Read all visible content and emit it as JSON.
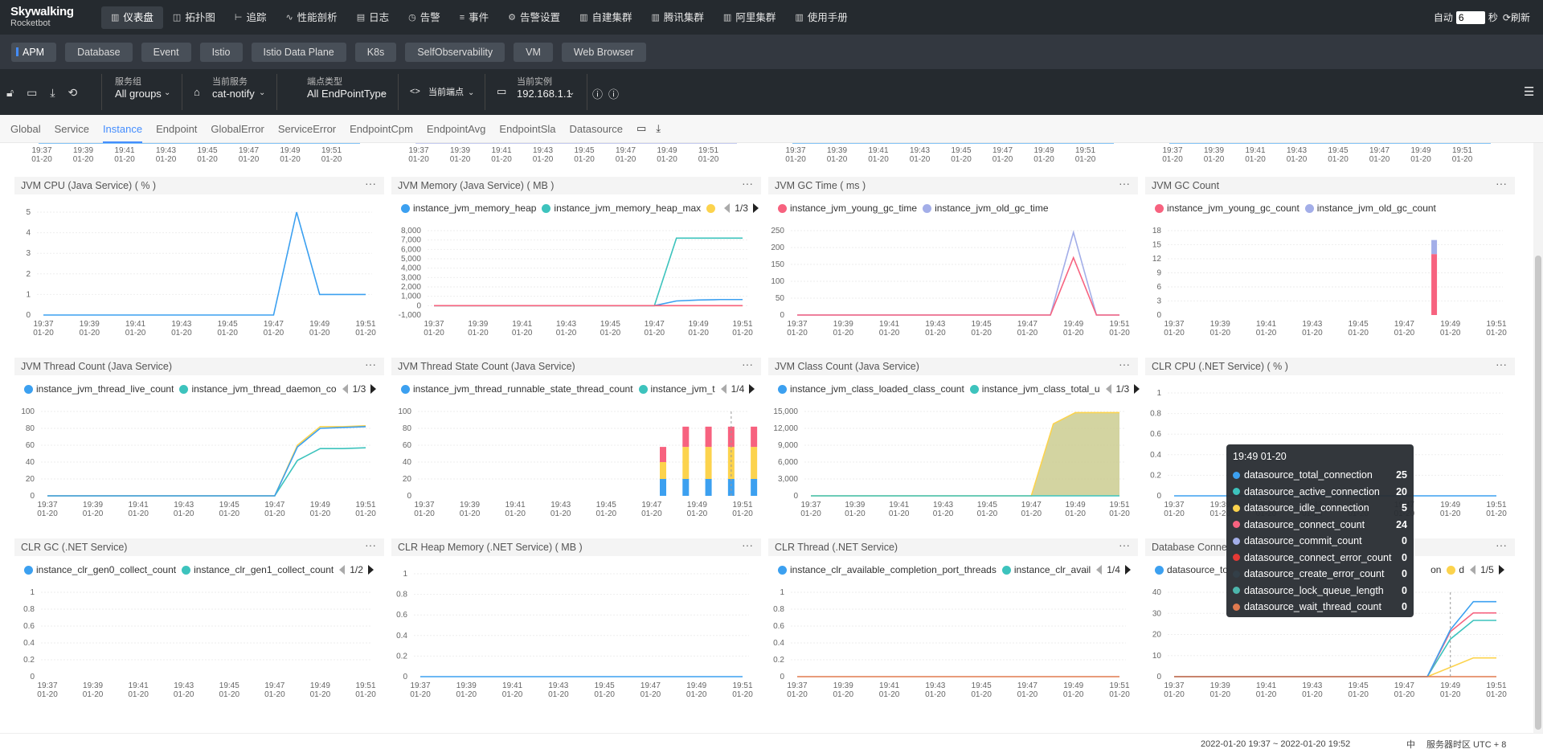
{
  "app": {
    "logo_line1": "Skywalking",
    "logo_line2": "Rocketbot"
  },
  "nav": [
    {
      "label": "仪表盘",
      "icon": "dashboard-icon",
      "glyph": "▥",
      "active": true
    },
    {
      "label": "拓扑图",
      "icon": "topology-icon",
      "glyph": "◫"
    },
    {
      "label": "追踪",
      "icon": "trace-icon",
      "glyph": "⊢"
    },
    {
      "label": "性能剖析",
      "icon": "profile-icon",
      "glyph": "∿"
    },
    {
      "label": "日志",
      "icon": "log-icon",
      "glyph": "▤"
    },
    {
      "label": "告警",
      "icon": "alarm-icon",
      "glyph": "◷"
    },
    {
      "label": "事件",
      "icon": "event-icon",
      "glyph": "≡"
    },
    {
      "label": "告警设置",
      "icon": "settings-icon",
      "glyph": "⚙"
    },
    {
      "label": "自建集群",
      "icon": "chart-icon",
      "glyph": "▥"
    },
    {
      "label": "腾讯集群",
      "icon": "chart-icon",
      "glyph": "▥"
    },
    {
      "label": "阿里集群",
      "icon": "chart-icon",
      "glyph": "▥"
    },
    {
      "label": "使用手册",
      "icon": "chart-icon",
      "glyph": "▥"
    }
  ],
  "auto_refresh": {
    "label": "自动",
    "value": "6",
    "unit": "秒",
    "refresh": "刷新"
  },
  "layers": [
    "APM",
    "Database",
    "Event",
    "Istio",
    "Istio Data Plane",
    "K8s",
    "SelfObservability",
    "VM",
    "Web Browser"
  ],
  "selectors": [
    {
      "label": "服务组",
      "value": "All groups"
    },
    {
      "label": "当前服务",
      "value": "cat-notify"
    },
    {
      "label": "端点类型",
      "value": "All EndPointType"
    },
    {
      "label": "",
      "value": "当前端点"
    },
    {
      "label": "当前实例",
      "value": "192.168.1.1"
    }
  ],
  "tabs": [
    "Global",
    "Service",
    "Instance",
    "Endpoint",
    "GlobalError",
    "ServiceError",
    "EndpointCpm",
    "EndpointAvg",
    "EndpointSla",
    "Datasource"
  ],
  "active_tab": "Instance",
  "x_ticks": [
    "19:37",
    "19:39",
    "19:41",
    "19:43",
    "19:45",
    "19:47",
    "19:49",
    "19:51"
  ],
  "x_date": "01-20",
  "panels": [
    {
      "title": "JVM CPU (Java Service) ( % )",
      "legend": [],
      "pager": "",
      "yticks": [
        "0",
        "1",
        "2",
        "3",
        "4",
        "5"
      ]
    },
    {
      "title": "JVM Memory (Java Service) ( MB )",
      "legend": [
        {
          "name": "instance_jvm_memory_heap",
          "color": "#3ca0f0"
        },
        {
          "name": "instance_jvm_memory_heap_max",
          "color": "#3dc3bd"
        },
        {
          "name": "",
          "color": "#fcd34d"
        }
      ],
      "pager": "1/3",
      "yticks": [
        "-1,000",
        "0",
        "1,000",
        "2,000",
        "3,000",
        "4,000",
        "5,000",
        "6,000",
        "7,000",
        "8,000"
      ]
    },
    {
      "title": "JVM GC Time ( ms )",
      "legend": [
        {
          "name": "instance_jvm_young_gc_time",
          "color": "#f7627f"
        },
        {
          "name": "instance_jvm_old_gc_time",
          "color": "#a3aee8"
        }
      ],
      "pager": "",
      "yticks": [
        "0",
        "50",
        "100",
        "150",
        "200",
        "250"
      ]
    },
    {
      "title": "JVM GC Count",
      "legend": [
        {
          "name": "instance_jvm_young_gc_count",
          "color": "#f7627f"
        },
        {
          "name": "instance_jvm_old_gc_count",
          "color": "#a3aee8"
        }
      ],
      "pager": "",
      "yticks": [
        "0",
        "3",
        "6",
        "9",
        "12",
        "15",
        "18"
      ]
    },
    {
      "title": "JVM Thread Count (Java Service)",
      "legend": [
        {
          "name": "instance_jvm_thread_live_count",
          "color": "#3ca0f0"
        },
        {
          "name": "instance_jvm_thread_daemon_co",
          "color": "#3dc3bd"
        }
      ],
      "pager": "1/3",
      "yticks": [
        "0",
        "20",
        "40",
        "60",
        "80",
        "100"
      ]
    },
    {
      "title": "JVM Thread State Count (Java Service)",
      "legend": [
        {
          "name": "instance_jvm_thread_runnable_state_thread_count",
          "color": "#3ca0f0"
        },
        {
          "name": "instance_jvm_t",
          "color": "#3dc3bd"
        }
      ],
      "pager": "1/4",
      "yticks": [
        "0",
        "20",
        "40",
        "60",
        "80",
        "100"
      ]
    },
    {
      "title": "JVM Class Count (Java Service)",
      "legend": [
        {
          "name": "instance_jvm_class_loaded_class_count",
          "color": "#3ca0f0"
        },
        {
          "name": "instance_jvm_class_total_u",
          "color": "#3dc3bd"
        }
      ],
      "pager": "1/3",
      "yticks": [
        "0",
        "3,000",
        "6,000",
        "9,000",
        "12,000",
        "15,000"
      ]
    },
    {
      "title": "CLR CPU (.NET Service) ( % )",
      "legend": [],
      "pager": "",
      "yticks": [
        "0",
        "0.2",
        "0.4",
        "0.6",
        "0.8",
        "1"
      ]
    },
    {
      "title": "CLR GC (.NET Service)",
      "legend": [
        {
          "name": "instance_clr_gen0_collect_count",
          "color": "#3ca0f0"
        },
        {
          "name": "instance_clr_gen1_collect_count",
          "color": "#3dc3bd"
        }
      ],
      "pager": "1/2",
      "yticks": [
        "0",
        "0.2",
        "0.4",
        "0.6",
        "0.8",
        "1"
      ]
    },
    {
      "title": "CLR Heap Memory (.NET Service) ( MB )",
      "legend": [],
      "pager": "",
      "yticks": [
        "0",
        "0.2",
        "0.4",
        "0.6",
        "0.8",
        "1"
      ]
    },
    {
      "title": "CLR Thread (.NET Service)",
      "legend": [
        {
          "name": "instance_clr_available_completion_port_threads",
          "color": "#3ca0f0"
        },
        {
          "name": "instance_clr_avail",
          "color": "#3dc3bd"
        }
      ],
      "pager": "1/4",
      "yticks": [
        "0",
        "0.2",
        "0.4",
        "0.6",
        "0.8",
        "1"
      ]
    },
    {
      "title": "Database Conne",
      "legend": [
        {
          "name": "datasource_to",
          "color": "#3ca0f0"
        }
      ],
      "pager": "1/5",
      "yticks": [
        "0",
        "10",
        "20",
        "30",
        "40"
      ]
    }
  ],
  "tooltip": {
    "title": "19:49 01-20",
    "rows": [
      {
        "name": "datasource_total_connection",
        "value": "25",
        "color": "#3ca0f0"
      },
      {
        "name": "datasource_active_connection",
        "value": "20",
        "color": "#3dc3bd"
      },
      {
        "name": "datasource_idle_connection",
        "value": "5",
        "color": "#fcd34d"
      },
      {
        "name": "datasource_connect_count",
        "value": "24",
        "color": "#f7627f"
      },
      {
        "name": "datasource_commit_count",
        "value": "0",
        "color": "#a3aee8"
      },
      {
        "name": "datasource_connect_error_count",
        "value": "0",
        "color": "#e53935"
      },
      {
        "name": "datasource_create_error_count",
        "value": "0",
        "color": "#333f48"
      },
      {
        "name": "datasource_lock_queue_length",
        "value": "0",
        "color": "#4db6ac"
      },
      {
        "name": "datasource_wait_thread_count",
        "value": "0",
        "color": "#e07a4f"
      }
    ]
  },
  "legend_overflow": {
    "label1": "on",
    "label2": "d"
  },
  "footer": {
    "range": "2022-01-20 19:37 ~ 2022-01-20 19:52",
    "lang": "中",
    "tz": "服务器时区 UTC + 8"
  },
  "colors": {
    "blue": "#3ca0f0",
    "teal": "#3dc3bd",
    "yellow": "#fcd34d",
    "pink": "#f7627f",
    "lavender": "#a3aee8",
    "red": "#e53935",
    "orange": "#e07a4f",
    "accent": "#448dfe"
  }
}
